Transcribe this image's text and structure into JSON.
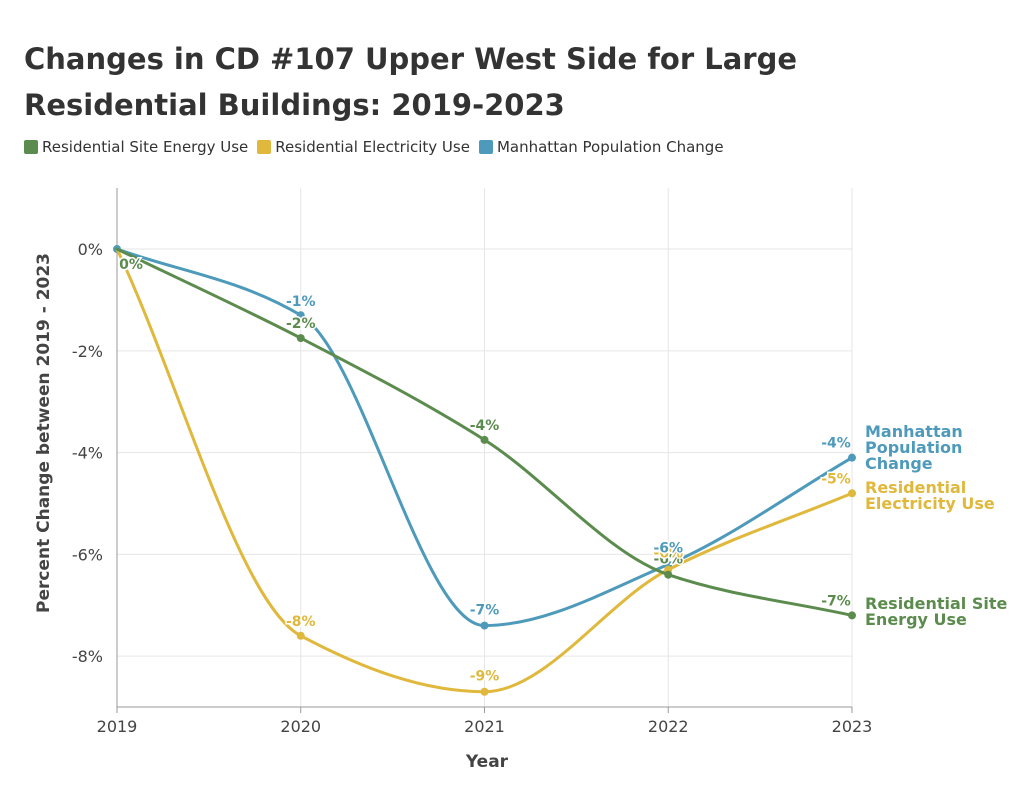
{
  "chart_data": {
    "type": "line",
    "title": "Changes in CD #107 Upper West Side for Large Residential Buildings: 2019-2023",
    "xlabel": "Year",
    "ylabel": "Percent Change between 2019 - 2023",
    "x": [
      "2019",
      "2020",
      "2021",
      "2022",
      "2023"
    ],
    "y_ticks": [
      0,
      -2,
      -4,
      -6,
      -8
    ],
    "y_tick_labels": [
      "0%",
      "-2%",
      "-4%",
      "-6%",
      "-8%"
    ],
    "ylim": [
      -9,
      1.2
    ],
    "grid": true,
    "legend_position": "top-left",
    "series": [
      {
        "name": "Residential Site Energy Use",
        "color": "#5b8c4e",
        "values": [
          0,
          -1.75,
          -3.75,
          -6.4,
          -7.2
        ],
        "data_labels": [
          "0%",
          "-2%",
          "-4%",
          "-6%",
          "-7%"
        ],
        "end_label": [
          "Residential Site",
          "Energy Use"
        ]
      },
      {
        "name": "Residential Electricity Use",
        "color": "#e0b83c",
        "values": [
          0,
          -7.6,
          -8.7,
          -6.3,
          -4.8
        ],
        "data_labels": [
          "0%",
          "-8%",
          "-9%",
          "-6%",
          "-5%"
        ],
        "end_label": [
          "Residential",
          "Electricity Use"
        ]
      },
      {
        "name": "Manhattan Population Change",
        "color": "#4e9abb",
        "values": [
          0,
          -1.3,
          -7.4,
          -6.2,
          -4.1
        ],
        "data_labels": [
          "0%",
          "-1%",
          "-7%",
          "-6%",
          "-4%"
        ],
        "end_label": [
          "Manhattan",
          "Population",
          "Change"
        ]
      }
    ]
  }
}
